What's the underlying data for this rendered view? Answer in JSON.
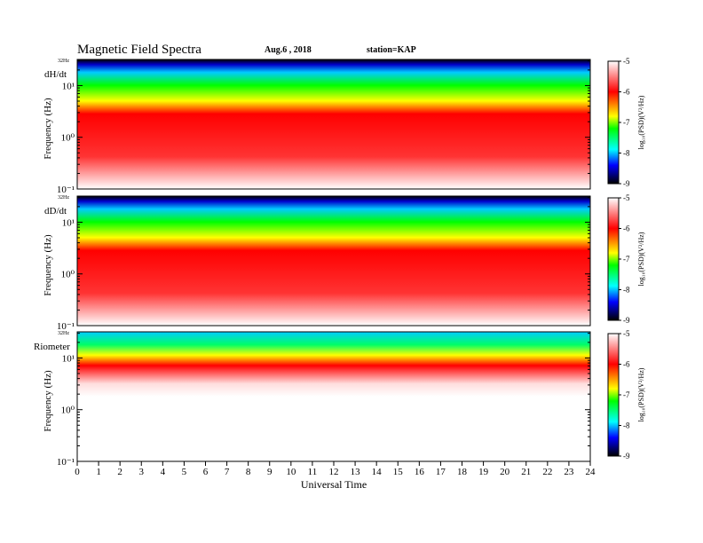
{
  "header": {
    "title": "Magnetic  Field  Spectra",
    "date": "Aug.6  , 2018",
    "station": "station=KAP"
  },
  "chart_data": [
    {
      "type": "heatmap",
      "panel_label": "dH/dt",
      "ylabel": "Frequency  (Hz)",
      "top_label": "32Hz",
      "y_ticks": [
        "10¹",
        "10⁰",
        "10⁻¹"
      ],
      "ylim": [
        0.1,
        32
      ],
      "y_scale": "log",
      "colorbar": {
        "label": "log₁₀(PSD)(V²/Hz)",
        "ticks": [
          "-5",
          "-6",
          "-7",
          "-8",
          "-9"
        ],
        "range": [
          -9,
          -5
        ],
        "colors": [
          "#ffffff",
          "#ff0000",
          "#00ff00",
          "#00ffff",
          "#0000ff",
          "#000000"
        ]
      }
    },
    {
      "type": "heatmap",
      "panel_label": "dD/dt",
      "ylabel": "Frequency  (Hz)",
      "top_label": "32Hz",
      "y_ticks": [
        "10¹",
        "10⁰",
        "10⁻¹"
      ],
      "ylim": [
        0.1,
        32
      ],
      "y_scale": "log",
      "colorbar": {
        "label": "log₁₀(PSD)(V²/Hz)",
        "ticks": [
          "-5",
          "-6",
          "-7",
          "-8",
          "-9"
        ],
        "range": [
          -9,
          -5
        ],
        "colors": [
          "#ffffff",
          "#ff0000",
          "#00ff00",
          "#00ffff",
          "#0000ff",
          "#000000"
        ]
      }
    },
    {
      "type": "heatmap",
      "panel_label": "Riometer",
      "ylabel": "Frequency  (Hz)",
      "top_label": "32Hz",
      "y_ticks": [
        "10¹",
        "10⁰",
        "10⁻¹"
      ],
      "ylim": [
        0.1,
        32
      ],
      "y_scale": "log",
      "colorbar": {
        "label": "log₁₀(PSD)(V²/Hz)",
        "ticks": [
          "-5",
          "-6",
          "-7",
          "-8",
          "-9"
        ],
        "range": [
          -9,
          -5
        ],
        "colors": [
          "#ffffff",
          "#ff0000",
          "#00ff00",
          "#00ffff",
          "#0000ff",
          "#000000"
        ]
      }
    }
  ],
  "x_axis": {
    "label": "Universal Time",
    "ticks": [
      "0",
      "1",
      "2",
      "3",
      "4",
      "5",
      "6",
      "7",
      "8",
      "9",
      "10",
      "11",
      "12",
      "13",
      "14",
      "15",
      "16",
      "17",
      "18",
      "19",
      "20",
      "21",
      "22",
      "23",
      "24"
    ],
    "range": [
      0,
      24
    ]
  }
}
